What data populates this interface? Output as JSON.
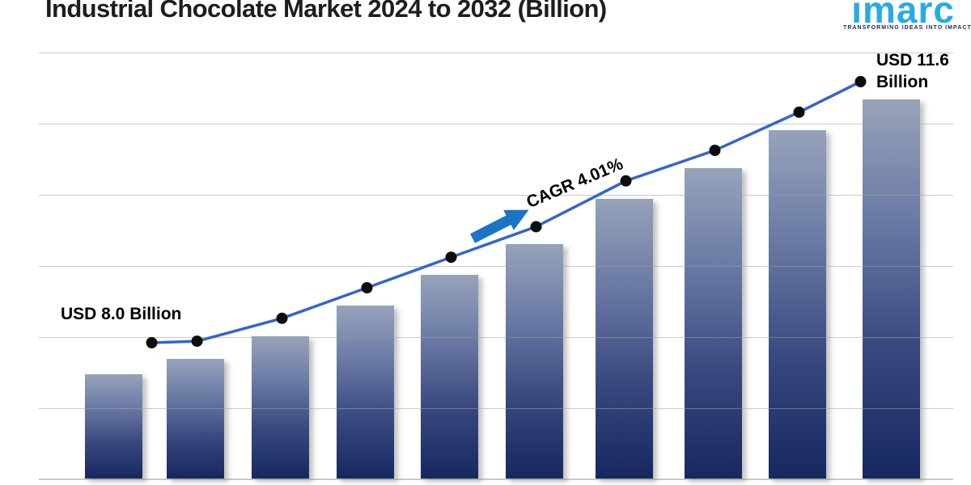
{
  "header": {
    "title": "Industrial Chocolate Market 2024 to 2032 (Billion)"
  },
  "logo": {
    "wordmark": "imarc",
    "tagline": "TRANSFORMING IDEAS INTO IMPACT"
  },
  "chart_data": {
    "type": "bar",
    "title": "Industrial Chocolate Market 2024 to 2032 (Billion)",
    "unit": "USD Billion",
    "num_bars": 10,
    "values": [
      8.0,
      8.2,
      8.5,
      8.9,
      9.3,
      9.7,
      10.3,
      10.7,
      11.2,
      11.6
    ],
    "start_value": 8.0,
    "end_value": 11.6,
    "cagr_percent": 4.01,
    "x_axis_labels_visible": false,
    "grid": true,
    "legend": false,
    "overlay_line": {
      "type": "line",
      "markers": "black-dots",
      "follows_bar_values": true
    },
    "annotations": {
      "start_label": "USD 8.0 Billion",
      "end_label_line1": "USD 11.6",
      "end_label_line2": "Billion",
      "cagr_label": "CAGR 4.01%"
    },
    "colors": {
      "bar_gradient_top": "#97a3ba",
      "bar_gradient_bottom": "#15285f",
      "trend_line": "#3565cc",
      "marker": "#0d0d0d",
      "arrow": "#1b74c5",
      "gridline": "#d2d2d2",
      "title_text": "#1d1d1d",
      "logo_wordmark": "#29abe2",
      "logo_tagline": "#1c2b49"
    }
  }
}
